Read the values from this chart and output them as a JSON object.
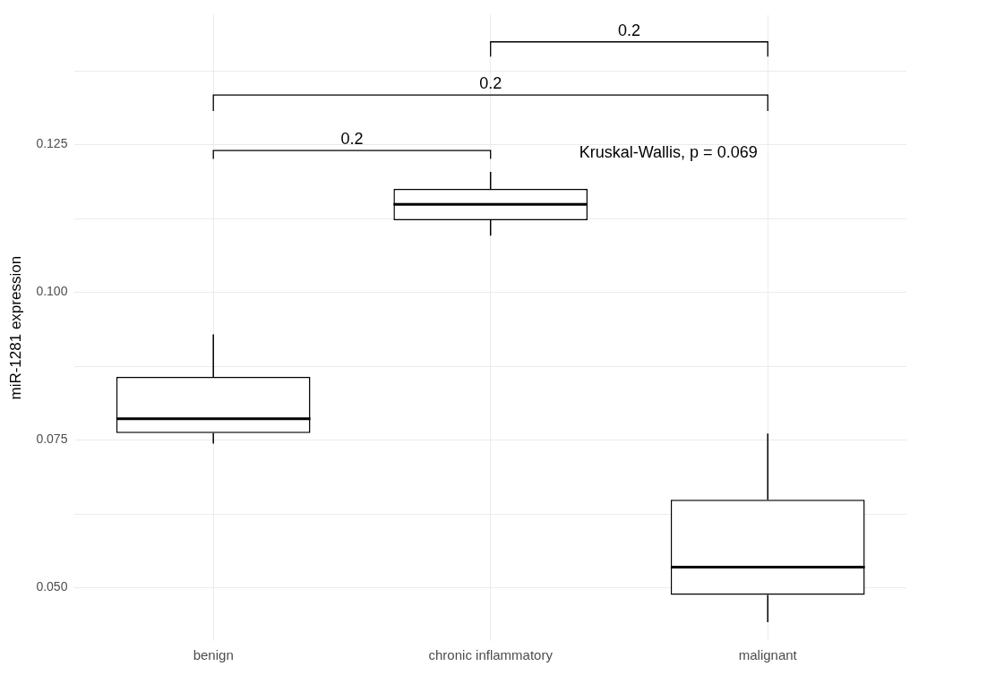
{
  "chart_data": {
    "type": "box",
    "ylabel": "miR-1281 expression",
    "categories": [
      "benign",
      "chronic inflammatory",
      "malignant"
    ],
    "boxes": [
      {
        "low": 0.0744,
        "q1": 0.0762,
        "median": 0.0786,
        "q3": 0.0857,
        "high": 0.0929
      },
      {
        "low": 0.1096,
        "q1": 0.1122,
        "median": 0.1149,
        "q3": 0.1175,
        "high": 0.1204
      },
      {
        "low": 0.0442,
        "q1": 0.0488,
        "median": 0.0535,
        "q3": 0.0649,
        "high": 0.0761
      }
    ],
    "ylim": [
      0.041,
      0.147
    ],
    "yticks": [
      {
        "value": 0.05,
        "label": "0.050"
      },
      {
        "value": 0.0625,
        "label": null
      },
      0.075,
      {
        "value": 0.0875,
        "label": null
      },
      {
        "value": 0.1,
        "label": "0.100"
      },
      {
        "value": 0.1125,
        "label": null
      },
      0.125,
      {
        "value": 0.1375,
        "label": null
      }
    ],
    "grid": true,
    "legend": false,
    "annotations": [
      "0.2",
      "0.2",
      "0.2",
      "Kruskal-Wallis, p = 0.069"
    ]
  }
}
